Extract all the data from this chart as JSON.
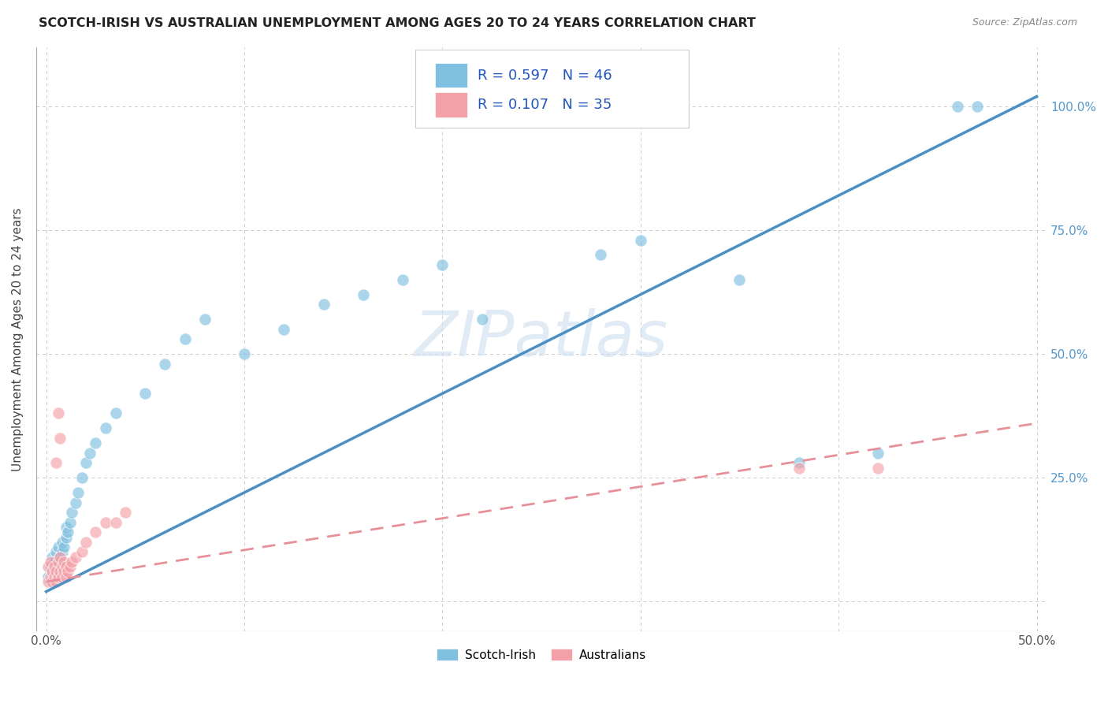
{
  "title": "SCOTCH-IRISH VS AUSTRALIAN UNEMPLOYMENT AMONG AGES 20 TO 24 YEARS CORRELATION CHART",
  "source": "Source: ZipAtlas.com",
  "ylabel": "Unemployment Among Ages 20 to 24 years",
  "blue_R": "0.597",
  "blue_N": "46",
  "pink_R": "0.107",
  "pink_N": "35",
  "blue_color": "#7fbfdf",
  "pink_color": "#f4a0a8",
  "blue_line_color": "#4a90c4",
  "pink_line_color": "#e8909a",
  "right_tick_color": "#5599cc",
  "watermark": "ZIPatlas",
  "background_color": "#ffffff",
  "grid_color": "#cccccc",
  "blue_scatter_x": [
    0.001,
    0.002,
    0.002,
    0.003,
    0.003,
    0.004,
    0.004,
    0.005,
    0.005,
    0.006,
    0.006,
    0.007,
    0.008,
    0.008,
    0.009,
    0.01,
    0.01,
    0.011,
    0.012,
    0.013,
    0.015,
    0.016,
    0.018,
    0.02,
    0.022,
    0.025,
    0.03,
    0.035,
    0.05,
    0.06,
    0.07,
    0.08,
    0.1,
    0.12,
    0.14,
    0.16,
    0.18,
    0.2,
    0.22,
    0.28,
    0.3,
    0.35,
    0.38,
    0.42,
    0.46,
    0.47
  ],
  "blue_scatter_y": [
    0.05,
    0.04,
    0.07,
    0.06,
    0.09,
    0.05,
    0.08,
    0.06,
    0.1,
    0.07,
    0.11,
    0.09,
    0.1,
    0.12,
    0.11,
    0.13,
    0.15,
    0.14,
    0.16,
    0.18,
    0.2,
    0.22,
    0.25,
    0.28,
    0.3,
    0.32,
    0.35,
    0.38,
    0.42,
    0.48,
    0.53,
    0.57,
    0.5,
    0.55,
    0.6,
    0.62,
    0.65,
    0.68,
    0.57,
    0.7,
    0.73,
    0.65,
    0.28,
    0.3,
    1.0,
    1.0
  ],
  "pink_scatter_x": [
    0.001,
    0.001,
    0.002,
    0.002,
    0.003,
    0.003,
    0.004,
    0.004,
    0.005,
    0.005,
    0.006,
    0.006,
    0.007,
    0.007,
    0.008,
    0.008,
    0.009,
    0.009,
    0.01,
    0.01,
    0.011,
    0.012,
    0.013,
    0.015,
    0.018,
    0.02,
    0.025,
    0.03,
    0.035,
    0.04,
    0.006,
    0.007,
    0.005,
    0.38,
    0.42
  ],
  "pink_scatter_y": [
    0.04,
    0.07,
    0.05,
    0.08,
    0.04,
    0.06,
    0.05,
    0.07,
    0.04,
    0.06,
    0.05,
    0.08,
    0.06,
    0.09,
    0.05,
    0.07,
    0.06,
    0.08,
    0.05,
    0.07,
    0.06,
    0.07,
    0.08,
    0.09,
    0.1,
    0.12,
    0.14,
    0.16,
    0.16,
    0.18,
    0.38,
    0.33,
    0.28,
    0.27,
    0.27
  ],
  "blue_line_x": [
    0.0,
    0.5
  ],
  "blue_line_y": [
    0.02,
    1.02
  ],
  "pink_line_x": [
    0.0,
    0.5
  ],
  "pink_line_y": [
    0.04,
    0.36
  ],
  "xlim": [
    -0.005,
    0.505
  ],
  "ylim": [
    -0.06,
    1.12
  ],
  "x_tick_positions": [
    0.0,
    0.1,
    0.2,
    0.3,
    0.4,
    0.5
  ],
  "x_tick_labels": [
    "0.0%",
    "",
    "",
    "",
    "",
    "50.0%"
  ],
  "y_tick_positions": [
    0.0,
    0.25,
    0.5,
    0.75,
    1.0
  ],
  "y_tick_labels_right": [
    "",
    "25.0%",
    "50.0%",
    "75.0%",
    "100.0%"
  ]
}
